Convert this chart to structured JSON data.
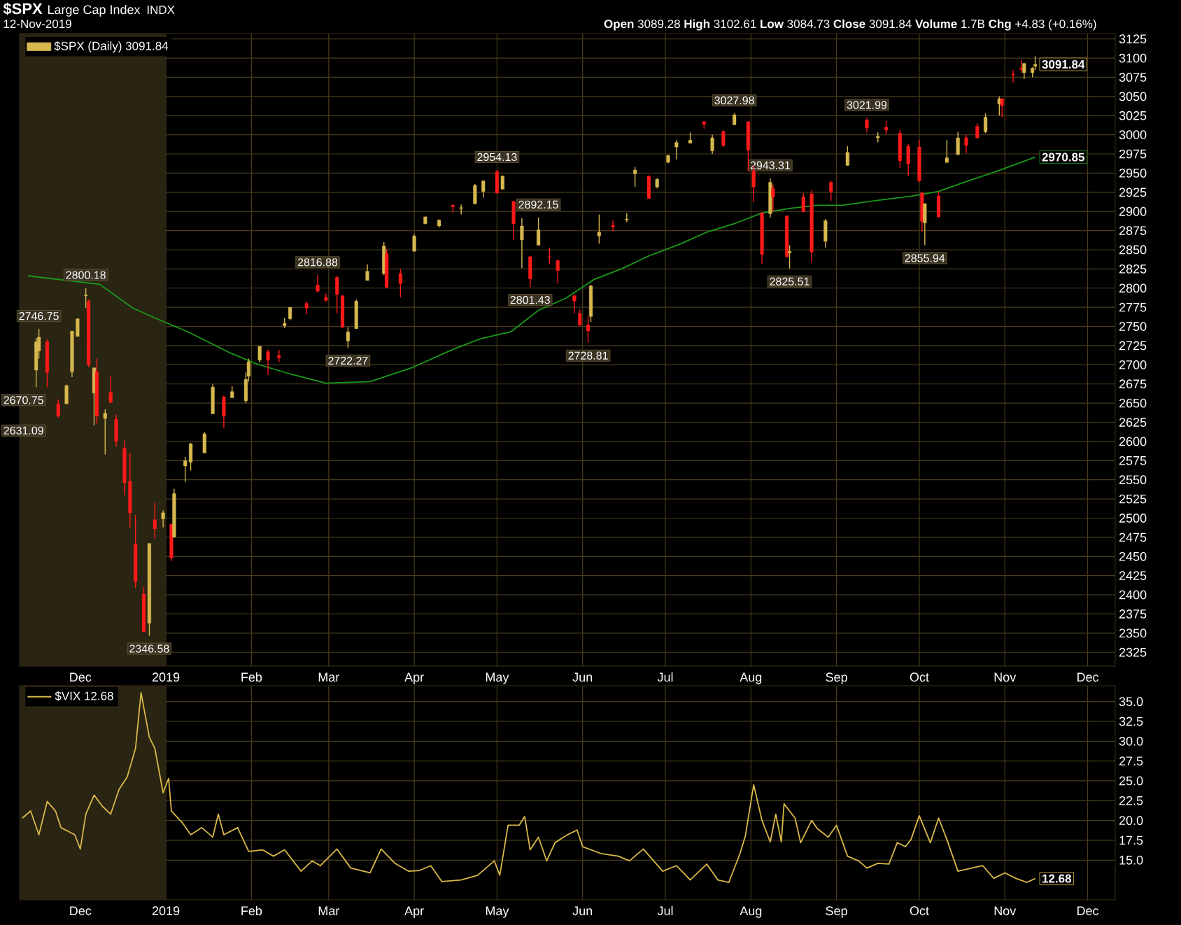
{
  "chart_data": [
    {
      "type": "candlestick",
      "title": "$SPX",
      "subtitle": "Large Cap Index",
      "annotations": [
        "INDX",
        "12-Nov-2019",
        "**Open** 3089.28 **High** 3102.61 **Low** 3084.73 **Close** 3091.84 **Volume** 1.7B **Chg** +4.83 (+0.16%)",
        {
          "text": "2746.75",
          "x": "2018-11-16",
          "y": 2746.75
        },
        {
          "text": "2670.75",
          "x": "2018-11-19",
          "y": 2670.75
        },
        {
          "text": "2631.09",
          "x": "2018-11-23",
          "y": 2631.09
        },
        {
          "text": "2800.18",
          "x": "2018-12-03",
          "y": 2800.18
        },
        {
          "text": "2346.58",
          "x": "2018-12-26",
          "y": 2346.58
        },
        {
          "text": "2816.88",
          "x": "2019-02-25",
          "y": 2816.88
        },
        {
          "text": "2722.27",
          "x": "2019-03-08",
          "y": 2722.27
        },
        {
          "text": "2954.13",
          "x": "2019-05-01",
          "y": 2954.13
        },
        {
          "text": "2892.15",
          "x": "2019-05-16",
          "y": 2892.15
        },
        {
          "text": "2801.43",
          "x": "2019-05-13",
          "y": 2801.43
        },
        {
          "text": "2728.81",
          "x": "2019-06-03",
          "y": 2728.81
        },
        {
          "text": "3027.98",
          "x": "2019-07-26",
          "y": 3027.98
        },
        {
          "text": "2943.31",
          "x": "2019-08-08",
          "y": 2943.31
        },
        {
          "text": "2825.51",
          "x": "2019-08-15",
          "y": 2825.51
        },
        {
          "text": "3021.99",
          "x": "2019-09-12",
          "y": 3021.99
        },
        {
          "text": "2855.94",
          "x": "2019-10-03",
          "y": 2855.94
        },
        {
          "text": "2970.85",
          "x": "2019-11-12",
          "y": 2970.85
        },
        {
          "text": "3091.84",
          "x": "2019-11-12",
          "y": 3091.84
        }
      ],
      "xlim": [
        "2018-11-09",
        "2019-12-11"
      ],
      "xticks": [
        {
          "value": "2018-12-01",
          "label": "Dec"
        },
        {
          "value": "2019-01-01",
          "label": "2019"
        },
        {
          "value": "2019-02-01",
          "label": "Feb"
        },
        {
          "value": "2019-03-01",
          "label": "Mar"
        },
        {
          "value": "2019-04-01",
          "label": "Apr"
        },
        {
          "value": "2019-05-01",
          "label": "May"
        },
        {
          "value": "2019-06-01",
          "label": "Jun"
        },
        {
          "value": "2019-07-01",
          "label": "Jul"
        },
        {
          "value": "2019-08-01",
          "label": "Aug"
        },
        {
          "value": "2019-09-01",
          "label": "Sep"
        },
        {
          "value": "2019-10-01",
          "label": "Oct"
        },
        {
          "value": "2019-11-01",
          "label": "Nov"
        },
        {
          "value": "2019-12-01",
          "label": "Dec"
        }
      ],
      "ylim": [
        2307,
        3132
      ],
      "yticks": [
        2325,
        2350,
        2375,
        2400,
        2425,
        2450,
        2475,
        2500,
        2525,
        2550,
        2575,
        2600,
        2625,
        2650,
        2675,
        2700,
        2725,
        2750,
        2775,
        2800,
        2825,
        2850,
        2875,
        2900,
        2925,
        2950,
        2975,
        3000,
        3025,
        3050,
        3075,
        3100,
        3125
      ],
      "grid": true,
      "legend": "top left",
      "bands": [
        {
          "axis": "x",
          "from": "2018-11-09",
          "to": "2019-01-01",
          "color": "#2a2412"
        }
      ],
      "series": [
        {
          "name": "$SPX (Daily) 3091.84",
          "type": "candlestick",
          "colors": [
            "#d6b84e",
            "#d6b84e",
            "#ff1a1a",
            "#ff1a1a",
            "#d6b84e",
            "#d6b84e",
            "#d6b84e",
            "#d6b84e",
            "#ff1a1a",
            "#d6b84e",
            "#ff1a1a",
            "#d6b84e",
            "#ff1a1a",
            "#ff1a1a",
            "#ff1a1a",
            "#ff1a1a",
            "#ff1a1a",
            "#ff1a1a",
            "#d6b84e",
            "#ff1a1a",
            "#d6b84e",
            "#ff1a1a",
            "#d6b84e",
            "#d6b84e",
            "#d6b84e",
            "#d6b84e",
            "#d6b84e",
            "#ff1a1a",
            "#d6b84e",
            "#d6b84e",
            "#d6b84e",
            "#d6b84e",
            "#ff1a1a",
            "#ff1a1a",
            "#d6b84e",
            "#d6b84e",
            "#ff1a1a",
            "#ff1a1a",
            "#ff1a1a",
            "#ff1a1a",
            "#ff1a1a",
            "#d6b84e",
            "#d6b84e",
            "#d6b84e",
            "#d6b84e",
            "#ff1a1a",
            "#ff1a1a",
            "#d6b84e",
            "#d6b84e",
            "#d6b84e",
            "#ff1a1a",
            "#d6b84e",
            "#d6b84e",
            "#d6b84e",
            "#ff1a1a",
            "#d6b84e",
            "#ff1a1a",
            "#d6b84e",
            "#ff1a1a",
            "#d6b84e",
            "#ff1a1a",
            "#ff1a1a",
            "#ff1a1a",
            "#ff1a1a",
            "#ff1a1a",
            "#d6b84e",
            "#d6b84e",
            "#ff1a1a",
            "#d6b84e",
            "#d6b84e",
            "#ff1a1a",
            "#d6b84e",
            "#d6b84e",
            "#d6b84e",
            "#d6b84e",
            "#ff1a1a",
            "#d6b84e",
            "#ff1a1a",
            "#d6b84e",
            "#ff1a1a",
            "#ff1a1a",
            "#ff1a1a",
            "#d6b84e",
            "#ff1a1a",
            "#ff1a1a",
            "#d6b84e",
            "#ff1a1a",
            "#ff1a1a",
            "#d6b84e",
            "#ff1a1a",
            "#d6b84e",
            "#ff1a1a",
            "#d6b84e",
            "#ff1a1a",
            "#ff1a1a",
            "#ff1a1a",
            "#ff1a1a",
            "#ff1a1a",
            "#d6b84e",
            "#ff1a1a",
            "#d6b84e",
            "#d6b84e",
            "#ff1a1a",
            "#ff1a1a",
            "#d6b84e",
            "#d6b84e",
            "#ff1a1a",
            "#ff1a1a",
            "#ff1a1a",
            "#d6b84e",
            "#d6b84e",
            "#d6b84e"
          ],
          "x": [
            "2018-11-15",
            "2018-11-16",
            "2018-11-19",
            "2018-11-23",
            "2018-11-26",
            "2018-11-28",
            "2018-11-30",
            "2018-12-03",
            "2018-12-04",
            "2018-12-06",
            "2018-12-07",
            "2018-12-10",
            "2018-12-12",
            "2018-12-14",
            "2018-12-17",
            "2018-12-19",
            "2018-12-21",
            "2018-12-24",
            "2018-12-26",
            "2018-12-28",
            "2018-12-31",
            "2019-01-03",
            "2019-01-04",
            "2019-01-08",
            "2019-01-10",
            "2019-01-15",
            "2019-01-18",
            "2019-01-22",
            "2019-01-25",
            "2019-01-30",
            "2019-01-31",
            "2019-02-04",
            "2019-02-07",
            "2019-02-11",
            "2019-02-13",
            "2019-02-15",
            "2019-02-21",
            "2019-02-25",
            "2019-02-28",
            "2019-03-04",
            "2019-03-06",
            "2019-03-08",
            "2019-03-11",
            "2019-03-15",
            "2019-03-21",
            "2019-03-22",
            "2019-03-27",
            "2019-04-01",
            "2019-04-05",
            "2019-04-10",
            "2019-04-15",
            "2019-04-18",
            "2019-04-23",
            "2019-04-26",
            "2019-05-01",
            "2019-05-03",
            "2019-05-07",
            "2019-05-10",
            "2019-05-13",
            "2019-05-16",
            "2019-05-20",
            "2019-05-23",
            "2019-05-29",
            "2019-05-31",
            "2019-06-03",
            "2019-06-04",
            "2019-06-07",
            "2019-06-12",
            "2019-06-17",
            "2019-06-20",
            "2019-06-25",
            "2019-06-28",
            "2019-07-02",
            "2019-07-05",
            "2019-07-10",
            "2019-07-15",
            "2019-07-18",
            "2019-07-22",
            "2019-07-26",
            "2019-07-31",
            "2019-08-02",
            "2019-08-05",
            "2019-08-08",
            "2019-08-09",
            "2019-08-14",
            "2019-08-15",
            "2019-08-20",
            "2019-08-23",
            "2019-08-28",
            "2019-08-30",
            "2019-09-05",
            "2019-09-12",
            "2019-09-16",
            "2019-09-19",
            "2019-09-24",
            "2019-09-27",
            "2019-10-01",
            "2019-10-02",
            "2019-10-03",
            "2019-10-08",
            "2019-10-11",
            "2019-10-15",
            "2019-10-18",
            "2019-10-22",
            "2019-10-25",
            "2019-10-30",
            "2019-10-31",
            "2019-11-04",
            "2019-11-07",
            "2019-11-08",
            "2019-11-11",
            "2019-11-12"
          ],
          "ohlc": [
            [
              2693,
              2735,
              2671,
              2730
            ],
            [
              2718,
              2746.75,
              2708,
              2736
            ],
            [
              2730,
              2733,
              2670.75,
              2690
            ],
            [
              2649,
              2655,
              2631.09,
              2633
            ],
            [
              2649,
              2674,
              2649,
              2673
            ],
            [
              2691,
              2744,
              2684,
              2744
            ],
            [
              2737,
              2760,
              2737,
              2760
            ],
            [
              2790,
              2800.18,
              2774,
              2791
            ],
            [
              2783,
              2785,
              2697,
              2700
            ],
            [
              2663,
              2696,
              2621,
              2696
            ],
            [
              2691,
              2708,
              2623,
              2633
            ],
            [
              2630,
              2642,
              2583,
              2637
            ],
            [
              2664,
              2685,
              2650,
              2651
            ],
            [
              2629,
              2635,
              2593,
              2600
            ],
            [
              2591,
              2601,
              2530,
              2546
            ],
            [
              2548,
              2585,
              2488,
              2507
            ],
            [
              2466,
              2504,
              2409,
              2417
            ],
            [
              2401,
              2410,
              2351,
              2352
            ],
            [
              2363,
              2467,
              2346.58,
              2467
            ],
            [
              2498,
              2520,
              2473,
              2486
            ],
            [
              2499,
              2510,
              2488,
              2507
            ],
            [
              2492,
              2493,
              2444,
              2448
            ],
            [
              2475,
              2538,
              2475,
              2532
            ],
            [
              2568,
              2580,
              2547,
              2575
            ],
            [
              2573,
              2598,
              2562,
              2597
            ],
            [
              2585,
              2612,
              2585,
              2610
            ],
            [
              2636,
              2675,
              2636,
              2671
            ],
            [
              2658,
              2660,
              2617,
              2633
            ],
            [
              2657,
              2672,
              2657,
              2665
            ],
            [
              2653,
              2690,
              2650,
              2681
            ],
            [
              2685,
              2708,
              2678,
              2704
            ],
            [
              2706,
              2724,
              2703,
              2724
            ],
            [
              2717,
              2720,
              2687,
              2706
            ],
            [
              2712,
              2719,
              2704,
              2709
            ],
            [
              2751,
              2761,
              2748,
              2754
            ],
            [
              2760,
              2775,
              2758,
              2775
            ],
            [
              2780,
              2783,
              2766,
              2774
            ],
            [
              2804,
              2816.88,
              2794,
              2796
            ],
            [
              2788,
              2793,
              2782,
              2784
            ],
            [
              2814,
              2816,
              2767,
              2792
            ],
            [
              2790,
              2791,
              2748,
              2749
            ],
            [
              2731,
              2749,
              2722.27,
              2743
            ],
            [
              2747,
              2785,
              2747,
              2783
            ],
            [
              2810,
              2831,
              2810,
              2822
            ],
            [
              2819,
              2860,
              2817,
              2855
            ],
            [
              2845,
              2851,
              2800,
              2801
            ],
            [
              2819,
              2825,
              2788,
              2806
            ],
            [
              2848,
              2870,
              2848,
              2868
            ],
            [
              2884,
              2893,
              2883,
              2893
            ],
            [
              2881,
              2889,
              2879,
              2889
            ],
            [
              2908,
              2910,
              2898,
              2906
            ],
            [
              2904,
              2909,
              2896,
              2905
            ],
            [
              2910,
              2936,
              2909,
              2934
            ],
            [
              2926,
              2940,
              2918,
              2940
            ],
            [
              2952,
              2954.13,
              2923,
              2924
            ],
            [
              2929,
              2947,
              2929,
              2946
            ],
            [
              2913,
              2914,
              2863,
              2884
            ],
            [
              2863,
              2891,
              2826,
              2881
            ],
            [
              2841,
              2842,
              2801.43,
              2812
            ],
            [
              2856,
              2892.15,
              2856,
              2876
            ],
            [
              2841,
              2853,
              2831,
              2840
            ],
            [
              2836,
              2837,
              2806,
              2823
            ],
            [
              2790,
              2792,
              2767,
              2783
            ],
            [
              2767,
              2772,
              2750,
              2752
            ],
            [
              2752,
              2763,
              2728.81,
              2744
            ],
            [
              2763,
              2804,
              2756,
              2803
            ],
            [
              2868,
              2896,
              2858,
              2873
            ],
            [
              2882,
              2888,
              2874,
              2880
            ],
            [
              2889,
              2898,
              2886,
              2890
            ],
            [
              2949,
              2958,
              2932,
              2954
            ],
            [
              2946,
              2947,
              2916,
              2917
            ],
            [
              2932,
              2943,
              2930,
              2942
            ],
            [
              2964,
              2974,
              2963,
              2973
            ],
            [
              2984,
              2993,
              2968,
              2990
            ],
            [
              2989,
              3003,
              2989,
              2993
            ],
            [
              3017,
              3018,
              3008,
              3014
            ],
            [
              2979,
              3000,
              2975,
              2996
            ],
            [
              3004,
              3006,
              2984,
              2986
            ],
            [
              3013,
              3027.98,
              3013,
              3026
            ],
            [
              3017,
              3018,
              2953,
              2980
            ],
            [
              2953,
              2960,
              2912,
              2932
            ],
            [
              2898,
              2899,
              2832,
              2844
            ],
            [
              2897,
              2943.31,
              2892,
              2938
            ],
            [
              2930,
              2935,
              2900,
              2919
            ],
            [
              2894,
              2895,
              2840,
              2841
            ],
            [
              2846,
              2856,
              2825.51,
              2848
            ],
            [
              2919,
              2924,
              2899,
              2900
            ],
            [
              2923,
              2928,
              2834,
              2847
            ],
            [
              2861,
              2890,
              2853,
              2888
            ],
            [
              2938,
              2940,
              2914,
              2926
            ],
            [
              2960,
              2985,
              2960,
              2977
            ],
            [
              3019,
              3021.99,
              3003,
              3009
            ],
            [
              2996,
              3003,
              2990,
              2998
            ],
            [
              3010,
              3018,
              3000,
              3006
            ],
            [
              3002,
              3007,
              2957,
              2966
            ],
            [
              2985,
              2988,
              2946,
              2962
            ],
            [
              2984,
              2993,
              2938,
              2940
            ],
            [
              2924,
              2925,
              2874,
              2887
            ],
            [
              2885,
              2911,
              2855.94,
              2910
            ],
            [
              2920,
              2926,
              2892,
              2893
            ],
            [
              2964,
              2993,
              2963,
              2970
            ],
            [
              2974,
              3004,
              2974,
              2996
            ],
            [
              2996,
              3000,
              2976,
              2986
            ],
            [
              3011,
              3015,
              2995,
              2996
            ],
            [
              3004,
              3028,
              3002,
              3023
            ],
            [
              3040,
              3050,
              3025,
              3047
            ],
            [
              3047,
              3048,
              3023,
              3038
            ],
            [
              3079,
              3084,
              3068,
              3078
            ],
            [
              3087,
              3098,
              3081,
              3085
            ],
            [
              3081,
              3094,
              3073,
              3093
            ],
            [
              3081,
              3088,
              3075,
              3087
            ],
            [
              3089.28,
              3102.61,
              3084.73,
              3091.84
            ]
          ]
        },
        {
          "type": "line",
          "color": "#1a9a1a",
          "x": [
            "2018-11-12",
            "2018-12-08",
            "2018-12-20",
            "2018-12-30",
            "2019-01-09",
            "2019-01-24",
            "2019-02-03",
            "2019-02-15",
            "2019-02-28",
            "2019-03-16",
            "2019-03-31",
            "2019-04-15",
            "2019-04-25",
            "2019-05-06",
            "2019-05-16",
            "2019-05-26",
            "2019-06-05",
            "2019-06-15",
            "2019-06-25",
            "2019-07-06",
            "2019-07-16",
            "2019-07-26",
            "2019-08-05",
            "2019-08-15",
            "2019-08-25",
            "2019-09-03",
            "2019-09-13",
            "2019-09-28",
            "2019-10-08",
            "2019-10-18",
            "2019-10-28",
            "2019-11-12"
          ],
          "values": [
            2816,
            2805,
            2774,
            2758,
            2743,
            2716,
            2701,
            2688,
            2676,
            2678,
            2696,
            2720,
            2734,
            2743,
            2771,
            2787,
            2811,
            2825,
            2842,
            2857,
            2873,
            2884,
            2898,
            2904,
            2908,
            2908,
            2913,
            2920,
            2926,
            2939,
            2951,
            2970.85
          ]
        }
      ]
    },
    {
      "type": "line",
      "annotations": [
        {
          "text": "12.68",
          "x": "2019-11-12",
          "y": 12.68
        }
      ],
      "xlim": [
        "2018-11-09",
        "2019-12-11"
      ],
      "xticks": [
        {
          "value": "2018-12-01",
          "label": "Dec"
        },
        {
          "value": "2019-01-01",
          "label": "2019"
        },
        {
          "value": "2019-02-01",
          "label": "Feb"
        },
        {
          "value": "2019-03-01",
          "label": "Mar"
        },
        {
          "value": "2019-04-01",
          "label": "Apr"
        },
        {
          "value": "2019-05-01",
          "label": "May"
        },
        {
          "value": "2019-06-01",
          "label": "Jun"
        },
        {
          "value": "2019-07-01",
          "label": "Jul"
        },
        {
          "value": "2019-08-01",
          "label": "Aug"
        },
        {
          "value": "2019-09-01",
          "label": "Sep"
        },
        {
          "value": "2019-10-01",
          "label": "Oct"
        },
        {
          "value": "2019-11-01",
          "label": "Nov"
        },
        {
          "value": "2019-12-01",
          "label": "Dec"
        }
      ],
      "ylim": [
        10,
        37
      ],
      "yticks": [
        {
          "value": 15,
          "label": "15.0"
        },
        {
          "value": 17.5,
          "label": "17.5"
        },
        {
          "value": 20,
          "label": "20.0"
        },
        {
          "value": 22.5,
          "label": "22.5"
        },
        {
          "value": 25,
          "label": "25.0"
        },
        {
          "value": 27.5,
          "label": "27.5"
        },
        {
          "value": 30,
          "label": "30.0"
        },
        {
          "value": 32.5,
          "label": "32.5"
        },
        {
          "value": 35,
          "label": "35.0"
        }
      ],
      "grid": true,
      "legend": "top left",
      "bands": [
        {
          "axis": "x",
          "from": "2018-11-09",
          "to": "2019-01-01",
          "color": "#2a2412"
        }
      ],
      "series": [
        {
          "name": "$VIX 12.68",
          "color": "#d8b848",
          "x": [
            "2018-11-10",
            "2018-11-13",
            "2018-11-16",
            "2018-11-19",
            "2018-11-22",
            "2018-11-24",
            "2018-11-29",
            "2018-12-01",
            "2018-12-03",
            "2018-12-06",
            "2018-12-09",
            "2018-12-12",
            "2018-12-15",
            "2018-12-18",
            "2018-12-21",
            "2018-12-23",
            "2018-12-26",
            "2018-12-28",
            "2018-12-31",
            "2019-01-02",
            "2019-01-03",
            "2019-01-07",
            "2019-01-10",
            "2019-01-14",
            "2019-01-18",
            "2019-01-20",
            "2019-01-22",
            "2019-01-27",
            "2019-01-31",
            "2019-02-05",
            "2019-02-09",
            "2019-02-13",
            "2019-02-19",
            "2019-02-23",
            "2019-02-26",
            "2019-03-04",
            "2019-03-09",
            "2019-03-16",
            "2019-03-20",
            "2019-03-25",
            "2019-03-30",
            "2019-04-03",
            "2019-04-07",
            "2019-04-11",
            "2019-04-18",
            "2019-04-24",
            "2019-04-30",
            "2019-05-02",
            "2019-05-05",
            "2019-05-09",
            "2019-05-11",
            "2019-05-13",
            "2019-05-16",
            "2019-05-19",
            "2019-05-22",
            "2019-05-26",
            "2019-05-30",
            "2019-06-01",
            "2019-06-08",
            "2019-06-14",
            "2019-06-18",
            "2019-06-23",
            "2019-06-30",
            "2019-07-05",
            "2019-07-10",
            "2019-07-16",
            "2019-07-20",
            "2019-07-24",
            "2019-07-28",
            "2019-07-30",
            "2019-08-02",
            "2019-08-05",
            "2019-08-08",
            "2019-08-10",
            "2019-08-12",
            "2019-08-13",
            "2019-08-17",
            "2019-08-19",
            "2019-08-23",
            "2019-08-25",
            "2019-08-29",
            "2019-09-01",
            "2019-09-05",
            "2019-09-09",
            "2019-09-12",
            "2019-09-16",
            "2019-09-20",
            "2019-09-23",
            "2019-09-26",
            "2019-09-28",
            "2019-10-01",
            "2019-10-05",
            "2019-10-08",
            "2019-10-11",
            "2019-10-15",
            "2019-10-20",
            "2019-10-24",
            "2019-10-28",
            "2019-11-01",
            "2019-11-05",
            "2019-11-09",
            "2019-11-12"
          ],
          "values": [
            20.3,
            21.2,
            18.2,
            22.4,
            21.2,
            19.1,
            18.2,
            16.4,
            20.8,
            23.2,
            21.8,
            20.8,
            23.9,
            25.5,
            29.1,
            36.1,
            30.5,
            29.1,
            23.5,
            25.3,
            21.2,
            19.7,
            18.2,
            19.1,
            17.9,
            20.8,
            18.2,
            19.1,
            16.1,
            16.3,
            15.5,
            16.3,
            13.6,
            14.9,
            14.3,
            16.4,
            14.0,
            13.4,
            16.4,
            14.6,
            13.6,
            13.7,
            14.3,
            12.3,
            12.5,
            13.1,
            14.9,
            13.1,
            19.4,
            19.4,
            20.5,
            16.3,
            17.9,
            14.9,
            17.2,
            18.1,
            18.8,
            16.7,
            15.8,
            15.5,
            14.9,
            16.4,
            13.6,
            14.3,
            12.5,
            14.5,
            12.5,
            12.2,
            15.8,
            18.1,
            24.5,
            20.0,
            17.3,
            20.8,
            17.3,
            22.1,
            20.3,
            17.2,
            20.0,
            19.0,
            17.9,
            19.4,
            15.5,
            14.9,
            14.0,
            14.6,
            14.5,
            17.2,
            16.7,
            17.6,
            20.6,
            17.2,
            20.3,
            17.6,
            13.6,
            14.0,
            14.3,
            12.7,
            13.4,
            12.7,
            12.2,
            12.68
          ]
        }
      ]
    }
  ]
}
